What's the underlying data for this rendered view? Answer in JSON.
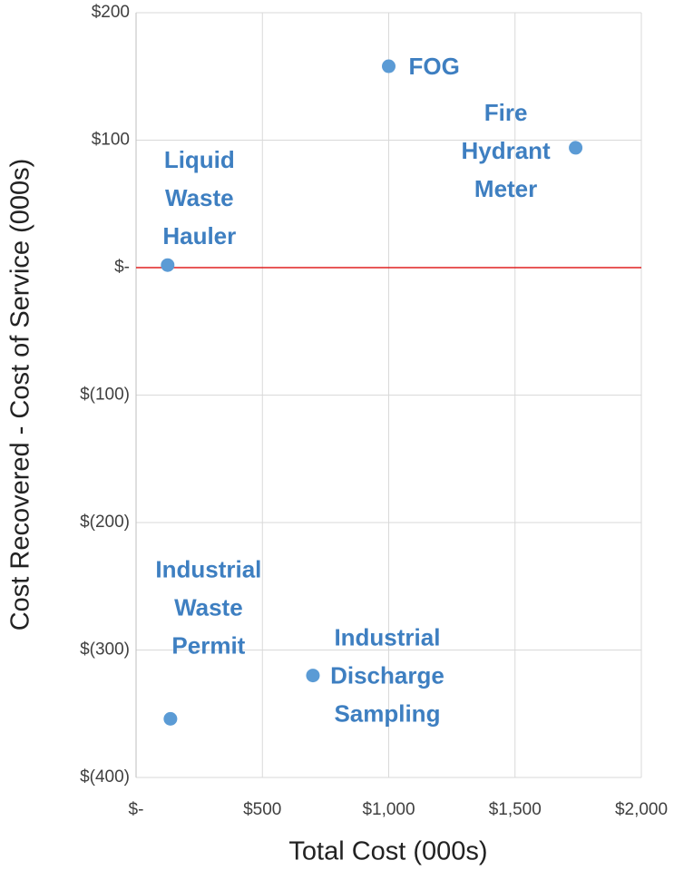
{
  "chart_data": {
    "type": "scatter",
    "x_label": "Total Cost (000s)",
    "y_label": "Cost Recovered - Cost of Service (000s)",
    "labels": [
      "FOG",
      "Fire Hydrant Meter",
      "Liquid Waste Hauler",
      "Industrial Waste Permit",
      "Industrial Discharge Sampling"
    ],
    "x": [
      1000,
      1740,
      125,
      136,
      700
    ],
    "values": [
      158,
      94,
      2,
      -354,
      -320
    ],
    "color": "#5b9bd5",
    "xlim": [
      0,
      2000
    ],
    "ylim": [
      -400,
      200
    ],
    "xticks": [
      {
        "value": 0,
        "label": "$-"
      },
      {
        "value": 500,
        "label": "$500"
      },
      {
        "value": 1000,
        "label": "$1,000"
      },
      {
        "value": 1500,
        "label": "$1,500"
      },
      {
        "value": 2000,
        "label": "$2,000"
      }
    ],
    "yticks": [
      {
        "value": -400,
        "label": "$(400)"
      },
      {
        "value": -300,
        "label": "$(300)"
      },
      {
        "value": -200,
        "label": "$(200)"
      },
      {
        "value": -100,
        "label": "$(100)"
      },
      {
        "value": 0,
        "label": "$-"
      },
      {
        "value": 100,
        "label": "$100"
      },
      {
        "value": 200,
        "label": "$200"
      }
    ],
    "grid": true,
    "reference_line": {
      "value": 0,
      "color": "#e02020"
    }
  }
}
